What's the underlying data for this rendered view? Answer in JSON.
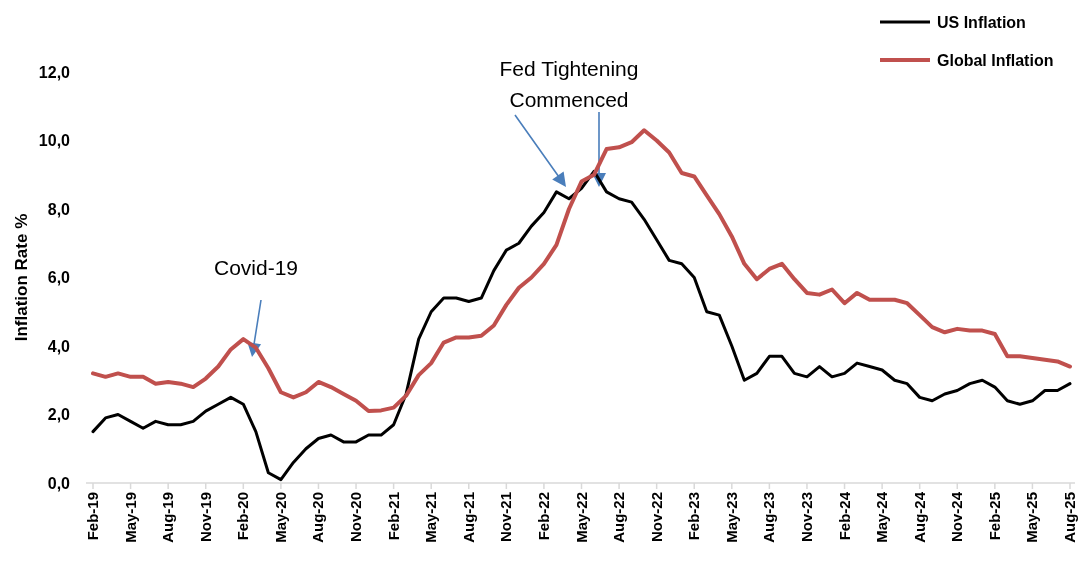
{
  "chart_data": {
    "type": "line",
    "ylabel": "Inflation Rate %",
    "categories": [
      "Feb-19",
      null,
      null,
      "May-19",
      null,
      null,
      "Aug-19",
      null,
      null,
      "Nov-19",
      null,
      null,
      "Feb-20",
      null,
      null,
      "May-20",
      null,
      null,
      "Aug-20",
      null,
      null,
      "Nov-20",
      null,
      null,
      "Feb-21",
      null,
      null,
      "May-21",
      null,
      null,
      "Aug-21",
      null,
      null,
      "Nov-21",
      null,
      null,
      "Feb-22",
      null,
      null,
      "May-22",
      null,
      null,
      "Aug-22",
      null,
      null,
      "Nov-22",
      null,
      null,
      "Feb-23",
      null,
      null,
      "May-23",
      null,
      null,
      "Aug-23",
      null,
      null,
      "Nov-23",
      null,
      null,
      "Feb-24",
      null,
      null,
      "May-24",
      null,
      null,
      "Aug-24",
      null,
      null,
      "Nov-24",
      null,
      null,
      "Feb-25",
      null,
      null,
      "May-25",
      null,
      null,
      "Aug-25"
    ],
    "series": [
      {
        "name": "US Inflation",
        "color": "#000000",
        "values": [
          1.5,
          1.9,
          2.0,
          1.8,
          1.6,
          1.8,
          1.7,
          1.7,
          1.8,
          2.1,
          2.3,
          2.5,
          2.3,
          1.5,
          0.3,
          0.1,
          0.6,
          1.0,
          1.3,
          1.4,
          1.2,
          1.2,
          1.4,
          1.4,
          1.7,
          2.6,
          4.2,
          5.0,
          5.4,
          5.4,
          5.3,
          5.4,
          6.2,
          6.8,
          7.0,
          7.5,
          7.9,
          8.5,
          8.3,
          8.6,
          9.1,
          8.5,
          8.3,
          8.2,
          7.7,
          7.1,
          6.5,
          6.4,
          6.0,
          5.0,
          4.9,
          4.0,
          3.0,
          3.2,
          3.7,
          3.7,
          3.2,
          3.1,
          3.4,
          3.1,
          3.2,
          3.5,
          3.4,
          3.3,
          3.0,
          2.9,
          2.5,
          2.4,
          2.6,
          2.7,
          2.9,
          3.0,
          2.8,
          2.4,
          2.3,
          2.4,
          2.7,
          2.7,
          2.9
        ]
      },
      {
        "name": "Global Inflation",
        "color": "#c0504d",
        "values": [
          3.2,
          3.1,
          3.2,
          3.1,
          3.1,
          2.9,
          2.95,
          2.9,
          2.8,
          3.05,
          3.4,
          3.9,
          4.2,
          3.95,
          3.35,
          2.65,
          2.5,
          2.65,
          2.95,
          2.8,
          2.6,
          2.4,
          2.1,
          2.12,
          2.2,
          2.55,
          3.15,
          3.5,
          4.1,
          4.25,
          4.25,
          4.3,
          4.6,
          5.2,
          5.7,
          6.0,
          6.4,
          6.95,
          8.0,
          8.8,
          9.0,
          9.75,
          9.8,
          9.95,
          10.3,
          10.0,
          9.65,
          9.05,
          8.95,
          8.4,
          7.85,
          7.2,
          6.4,
          5.95,
          6.25,
          6.4,
          5.95,
          5.55,
          5.5,
          5.65,
          5.25,
          5.55,
          5.35,
          5.35,
          5.35,
          5.25,
          4.9,
          4.55,
          4.4,
          4.5,
          4.45,
          4.45,
          4.35,
          3.7,
          3.7,
          3.65,
          3.6,
          3.55,
          3.4
        ]
      }
    ],
    "ylim": [
      0,
      12
    ],
    "yticks": [
      {
        "value": 0,
        "label": "0,0"
      },
      {
        "value": 2,
        "label": "2,0"
      },
      {
        "value": 4,
        "label": "4,0"
      },
      {
        "value": 6,
        "label": "6,0"
      },
      {
        "value": 8,
        "label": "8,0"
      },
      {
        "value": 10,
        "label": "10,0"
      },
      {
        "value": 12,
        "label": "12,0"
      }
    ],
    "annotations": [
      {
        "text": "Covid-19"
      },
      "Fed Tightening Commenced"
    ],
    "legend": "top right",
    "grid": false,
    "marker": "none",
    "line_style": "solid"
  }
}
